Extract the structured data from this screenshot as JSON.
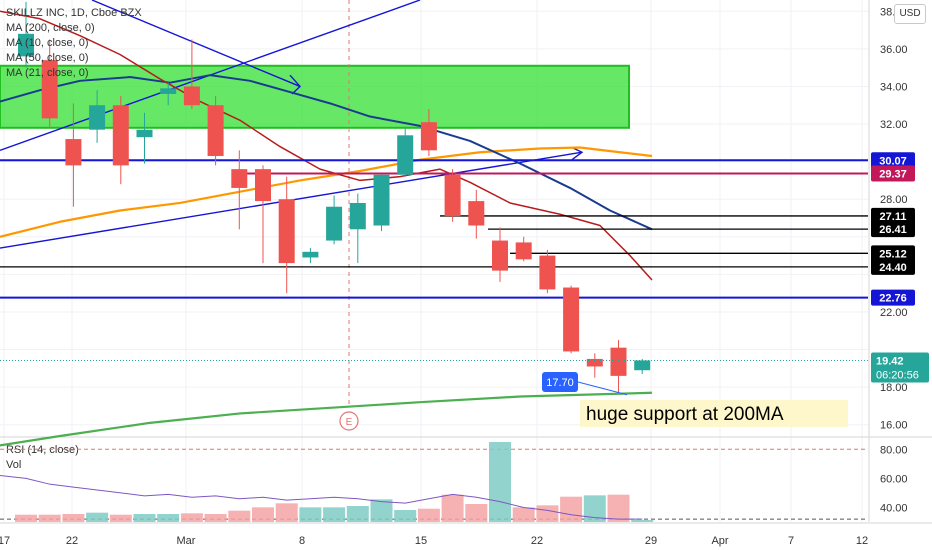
{
  "header": {
    "title": "SKILLZ INC, 1D, Cboe BZX",
    "currency": "USD",
    "legend_items": [
      "MA (200, close, 0)",
      "MA (10, close, 0)",
      "MA (50, close, 0)",
      "MA (21, close, 0)"
    ]
  },
  "colors": {
    "up": "#26a69a",
    "down": "#ef5350",
    "ma200": "#4caf50",
    "ma10": "#b71c1c",
    "ma50": "#ff9800",
    "ma21": "#1a3c8f",
    "blue_line": "#1515d6",
    "red_line": "#c2185b",
    "zone": "#33e033",
    "annotation_bg": "#fff7cc"
  },
  "chart_data": {
    "type": "candlestick",
    "x_ticks": [
      "17",
      "22",
      "Mar",
      "8",
      "15",
      "22",
      "29",
      "Apr",
      "7",
      "12"
    ],
    "y_ticks": [
      "38.00",
      "36.00",
      "34.00",
      "32.00",
      "30.00",
      "28.00",
      "26.00",
      "24.00",
      "22.00",
      "20.00",
      "18.00",
      "16.00"
    ],
    "ylim": [
      15.4,
      38.6
    ],
    "candles": [
      {
        "d": "Feb 19",
        "o": 35.6,
        "h": 38.5,
        "l": 35.0,
        "c": 36.8
      },
      {
        "d": "Feb 22",
        "o": 35.4,
        "h": 36.5,
        "l": 31.8,
        "c": 32.3
      },
      {
        "d": "Feb 23",
        "o": 31.2,
        "h": 33.1,
        "l": 27.6,
        "c": 29.8
      },
      {
        "d": "Feb 24",
        "o": 31.7,
        "h": 33.8,
        "l": 31.0,
        "c": 33.0
      },
      {
        "d": "Feb 25",
        "o": 33.0,
        "h": 33.5,
        "l": 28.8,
        "c": 29.8
      },
      {
        "d": "Feb 26",
        "o": 31.3,
        "h": 32.6,
        "l": 29.9,
        "c": 31.7
      },
      {
        "d": "Mar 1",
        "o": 33.6,
        "h": 34.2,
        "l": 33.0,
        "c": 33.9
      },
      {
        "d": "Mar 2",
        "o": 34.0,
        "h": 36.5,
        "l": 32.8,
        "c": 33.0
      },
      {
        "d": "Mar 3",
        "o": 33.0,
        "h": 33.5,
        "l": 29.8,
        "c": 30.3
      },
      {
        "d": "Mar 4",
        "o": 29.6,
        "h": 30.6,
        "l": 26.4,
        "c": 28.6
      },
      {
        "d": "Mar 5",
        "o": 29.6,
        "h": 29.8,
        "l": 24.6,
        "c": 27.9
      },
      {
        "d": "Mar 8",
        "o": 28.0,
        "h": 29.2,
        "l": 23.0,
        "c": 24.6
      },
      {
        "d": "Mar 9",
        "o": 24.9,
        "h": 25.4,
        "l": 24.6,
        "c": 25.2
      },
      {
        "d": "Mar 10",
        "o": 25.8,
        "h": 28.2,
        "l": 25.6,
        "c": 27.6
      },
      {
        "d": "Mar 11",
        "o": 26.4,
        "h": 28.3,
        "l": 24.6,
        "c": 27.8
      },
      {
        "d": "Mar 12",
        "o": 26.6,
        "h": 29.3,
        "l": 26.3,
        "c": 29.3
      },
      {
        "d": "Mar 15",
        "o": 29.3,
        "h": 31.8,
        "l": 29.2,
        "c": 31.4
      },
      {
        "d": "Mar 16",
        "o": 32.1,
        "h": 32.8,
        "l": 30.3,
        "c": 30.6
      },
      {
        "d": "Mar 17",
        "o": 29.3,
        "h": 29.6,
        "l": 26.8,
        "c": 27.1
      },
      {
        "d": "Mar 18",
        "o": 27.9,
        "h": 28.5,
        "l": 25.9,
        "c": 26.6
      },
      {
        "d": "Mar 19",
        "o": 25.8,
        "h": 26.5,
        "l": 23.6,
        "c": 24.2
      },
      {
        "d": "Mar 22",
        "o": 25.7,
        "h": 26.0,
        "l": 24.7,
        "c": 24.8
      },
      {
        "d": "Mar 23",
        "o": 25.0,
        "h": 25.3,
        "l": 23.0,
        "c": 23.2
      },
      {
        "d": "Mar 24",
        "o": 23.3,
        "h": 23.4,
        "l": 19.8,
        "c": 19.9
      },
      {
        "d": "Mar 25",
        "o": 19.5,
        "h": 19.8,
        "l": 18.5,
        "c": 19.1
      },
      {
        "d": "Mar 26",
        "o": 20.1,
        "h": 20.5,
        "l": 17.7,
        "c": 18.6
      },
      {
        "d": "Mar 29",
        "o": 18.9,
        "h": 19.5,
        "l": 18.7,
        "c": 19.42
      }
    ],
    "horizontal_levels": [
      {
        "price": 30.07,
        "label": "30.07",
        "color": "#1515d6"
      },
      {
        "price": 29.37,
        "label": "29.37",
        "color": "#c2185b"
      },
      {
        "price": 27.11,
        "label": "27.11",
        "color": "#000000"
      },
      {
        "price": 26.41,
        "label": "26.41",
        "color": "#000000"
      },
      {
        "price": 25.12,
        "label": "25.12",
        "color": "#000000"
      },
      {
        "price": 24.4,
        "label": "24.40",
        "color": "#000000"
      },
      {
        "price": 22.76,
        "label": "22.76",
        "color": "#1515d6"
      }
    ],
    "last_price": {
      "value": 19.42,
      "label": "19.42",
      "countdown": "06:20:56"
    },
    "support_zone": {
      "from": 31.8,
      "to": 35.1
    },
    "low_marker": {
      "label": "17.70",
      "value": 17.7
    },
    "annotation": "huge support at 200MA",
    "earnings_marker": "E",
    "indicators": {
      "rsi_label": "RSI (14, close)",
      "vol_label": "Vol",
      "y_ticks": [
        "80.00",
        "60.00",
        "40.00"
      ],
      "ylim": [
        30,
        85
      ],
      "overbought": 80,
      "oversold": 32
    },
    "volume": [
      {
        "v": 11,
        "up": false
      },
      {
        "v": 11,
        "up": false
      },
      {
        "v": 12,
        "up": false
      },
      {
        "v": 14,
        "up": true
      },
      {
        "v": 11,
        "up": false
      },
      {
        "v": 12,
        "up": true
      },
      {
        "v": 12,
        "up": true
      },
      {
        "v": 13,
        "up": false
      },
      {
        "v": 12,
        "up": false
      },
      {
        "v": 17,
        "up": false
      },
      {
        "v": 22,
        "up": false
      },
      {
        "v": 28,
        "up": false
      },
      {
        "v": 22,
        "up": true
      },
      {
        "v": 22,
        "up": true
      },
      {
        "v": 24,
        "up": true
      },
      {
        "v": 34,
        "up": true
      },
      {
        "v": 18,
        "up": true
      },
      {
        "v": 20,
        "up": false
      },
      {
        "v": 41,
        "up": false
      },
      {
        "v": 27,
        "up": false
      },
      {
        "v": 120,
        "up": true
      },
      {
        "v": 22,
        "up": false
      },
      {
        "v": 25,
        "up": false
      },
      {
        "v": 38,
        "up": false
      },
      {
        "v": 40,
        "up": true
      },
      {
        "v": 41,
        "up": false
      },
      {
        "v": 3,
        "up": true
      }
    ],
    "volume_max": 120
  }
}
